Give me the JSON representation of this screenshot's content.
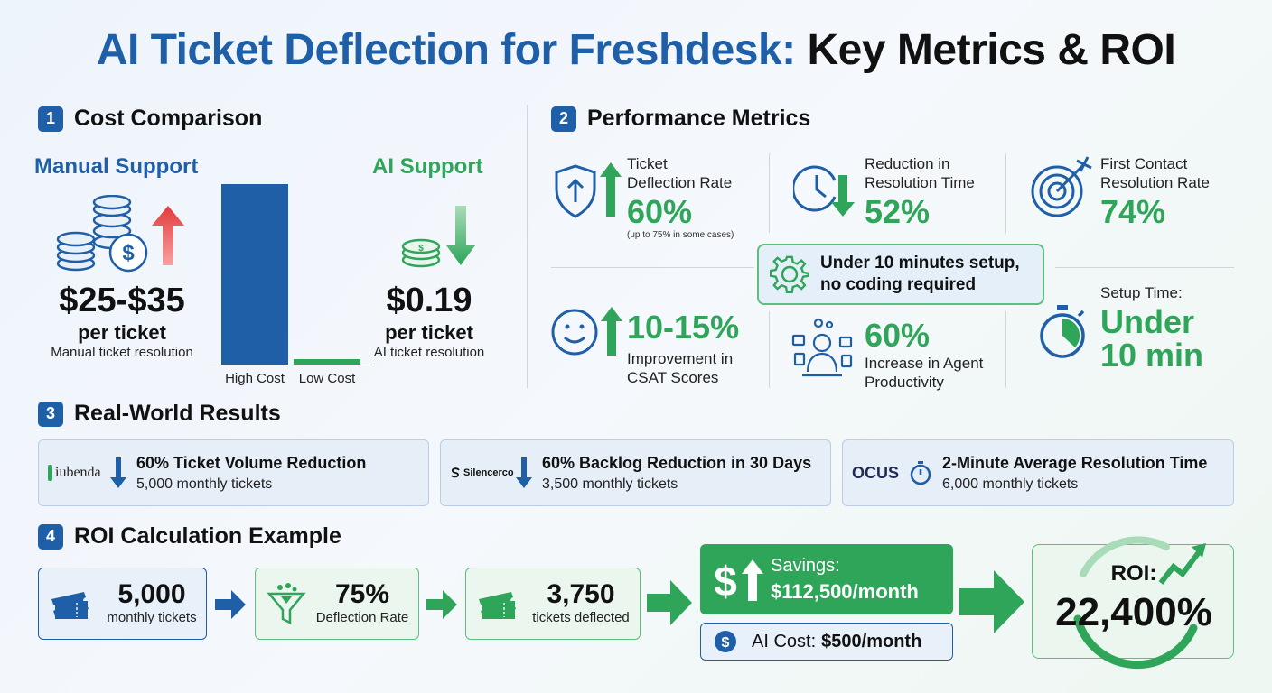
{
  "title": {
    "part1": "AI Ticket Deflection for Freshdesk:",
    "part2": "Key Metrics & ROI"
  },
  "colors": {
    "blue": "#1f5fa8",
    "green": "#2fa55a",
    "red": "#e33b3b"
  },
  "sections": {
    "s1": {
      "num": "1",
      "label": "Cost Comparison"
    },
    "s2": {
      "num": "2",
      "label": "Performance Metrics"
    },
    "s3": {
      "num": "3",
      "label": "Real-World Results"
    },
    "s4": {
      "num": "4",
      "label": "ROI Calculation Example"
    }
  },
  "cost": {
    "manual": {
      "heading": "Manual Support",
      "price": "$25-$35",
      "per": "per ticket",
      "caption": "Manual ticket resolution"
    },
    "ai": {
      "heading": "AI Support",
      "price": "$0.19",
      "per": "per ticket",
      "caption": "AI ticket resolution"
    },
    "bars": {
      "high_label": "High Cost",
      "low_label": "Low Cost"
    }
  },
  "metrics": {
    "deflection": {
      "label1": "Ticket",
      "label2": "Deflection Rate",
      "value": "60%",
      "note": "(up to 75% in some cases)",
      "icon": "shield-arrow-icon"
    },
    "resolution": {
      "label1": "Reduction in",
      "label2": "Resolution Time",
      "value": "52%",
      "icon": "clock-icon"
    },
    "fcr": {
      "label1": "First Contact",
      "label2": "Resolution Rate",
      "value": "74%",
      "icon": "target-icon"
    },
    "setup_banner": {
      "line1": "Under 10 minutes setup,",
      "line2": "no coding required",
      "icon": "gear-icon"
    },
    "csat": {
      "value": "10-15%",
      "label1": "Improvement in",
      "label2": "CSAT Scores",
      "icon": "smiley-icon"
    },
    "productivity": {
      "value": "60%",
      "label1": "Increase in Agent",
      "label2": "Productivity",
      "icon": "agent-icon"
    },
    "setup_time": {
      "label": "Setup Time:",
      "value1": "Under",
      "value2": "10 min",
      "icon": "stopwatch-icon"
    }
  },
  "results": [
    {
      "company": "iubenda",
      "title": "60% Ticket Volume Reduction",
      "sub": "5,000 monthly tickets"
    },
    {
      "company": "Silencerco",
      "title": "60% Backlog Reduction in 30 Days",
      "sub": "3,500 monthly tickets"
    },
    {
      "company": "OCUS",
      "title": "2-Minute Average Resolution Time",
      "sub": "6,000 monthly tickets"
    }
  ],
  "roi": {
    "tickets": {
      "value": "5,000",
      "sub": "monthly tickets"
    },
    "deflection": {
      "value": "75%",
      "sub": "Deflection Rate"
    },
    "deflected": {
      "value": "3,750",
      "sub": "tickets deflected"
    },
    "savings": {
      "label": "Savings:",
      "value": "$112,500/month"
    },
    "ai_cost": {
      "label": "AI Cost:",
      "value": "$500/month"
    },
    "result": {
      "label": "ROI:",
      "value": "22,400%"
    }
  }
}
